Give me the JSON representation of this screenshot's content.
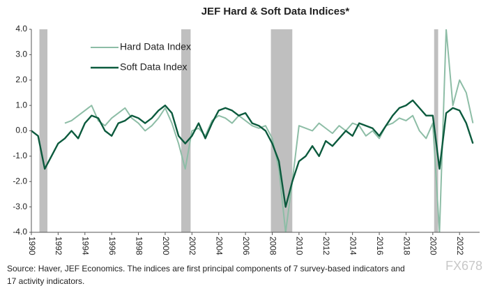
{
  "chart_data": {
    "type": "line",
    "title": "JEF Hard & Soft Data Indices*",
    "source": [
      "Source: Haver, JEF Economics. The indices are first principal components of 7 survey-based indicators and",
      "17 activity indicators."
    ],
    "watermark": "FX678",
    "x": [
      1990,
      1990.5,
      1991,
      1991.5,
      1992,
      1992.5,
      1993,
      1993.5,
      1994,
      1994.5,
      1995,
      1995.5,
      1996,
      1996.5,
      1997,
      1997.5,
      1998,
      1998.5,
      1999,
      1999.5,
      2000,
      2000.5,
      2001,
      2001.5,
      2002,
      2002.5,
      2003,
      2003.5,
      2004,
      2004.5,
      2005,
      2005.5,
      2006,
      2006.5,
      2007,
      2007.5,
      2008,
      2008.5,
      2009,
      2009.5,
      2010,
      2010.5,
      2011,
      2011.5,
      2012,
      2012.5,
      2013,
      2013.5,
      2014,
      2014.5,
      2015,
      2015.5,
      2016,
      2016.5,
      2017,
      2017.5,
      2018,
      2018.5,
      2019,
      2019.5,
      2020,
      2020.5,
      2021,
      2021.5,
      2022,
      2022.5,
      2023
    ],
    "series": [
      {
        "name": "Hard Data Index",
        "color": "#8dbda6",
        "values": [
          null,
          null,
          null,
          null,
          null,
          0.3,
          0.4,
          0.6,
          0.8,
          1.0,
          0.4,
          0.2,
          0.5,
          0.7,
          0.9,
          0.5,
          0.3,
          0.0,
          0.2,
          0.5,
          0.9,
          0.3,
          -0.5,
          -1.5,
          0.0,
          0.1,
          -0.2,
          0.4,
          0.6,
          0.5,
          0.3,
          0.6,
          0.4,
          0.2,
          0.1,
          0.2,
          -0.3,
          -1.5,
          -4.0,
          -2.0,
          0.2,
          0.1,
          0.0,
          0.3,
          0.1,
          -0.1,
          0.2,
          0.0,
          0.3,
          0.2,
          -0.2,
          0.0,
          -0.3,
          0.2,
          0.3,
          0.5,
          0.4,
          0.6,
          0.0,
          -0.3,
          0.3,
          -4.0,
          4.0,
          1.0,
          2.0,
          1.5,
          0.3
        ]
      },
      {
        "name": "Soft Data Index",
        "color": "#0b5a3d",
        "values": [
          0.0,
          -0.2,
          -1.5,
          -1.0,
          -0.5,
          -0.3,
          0.0,
          -0.3,
          0.3,
          0.6,
          0.5,
          0.0,
          -0.2,
          0.3,
          0.4,
          0.6,
          0.5,
          0.3,
          0.5,
          0.8,
          1.0,
          0.7,
          -0.2,
          -0.5,
          -0.2,
          0.3,
          -0.3,
          0.3,
          0.8,
          0.9,
          0.8,
          0.6,
          0.7,
          0.3,
          0.2,
          0.0,
          -0.5,
          -1.2,
          -3.0,
          -2.0,
          -1.2,
          -1.0,
          -0.6,
          -1.0,
          -0.4,
          -0.6,
          -0.3,
          0.0,
          -0.2,
          0.3,
          0.2,
          0.1,
          -0.2,
          0.2,
          0.6,
          0.9,
          1.0,
          1.2,
          0.9,
          0.6,
          0.6,
          -1.5,
          0.7,
          0.9,
          0.8,
          0.3,
          -0.5
        ]
      }
    ],
    "recessions": [
      [
        1990.6,
        1991.2
      ],
      [
        2001.2,
        2001.9
      ],
      [
        2007.9,
        2009.5
      ],
      [
        2020.1,
        2020.4
      ]
    ],
    "recession_color": "#bfbfbf",
    "xlim": [
      1990,
      2023.5
    ],
    "xticks": [
      1990,
      1992,
      1994,
      1996,
      1998,
      2000,
      2002,
      2004,
      2006,
      2008,
      2010,
      2012,
      2014,
      2016,
      2018,
      2020,
      2022
    ],
    "ylim": [
      -4,
      4
    ],
    "yticks": [
      {
        "value": 4,
        "label": "4.0"
      },
      {
        "value": 3,
        "label": "3.0"
      },
      {
        "value": 2,
        "label": "2.0"
      },
      {
        "value": 1,
        "label": "1.0"
      },
      {
        "value": 0,
        "label": "0.0"
      },
      {
        "value": -1,
        "label": "-1.0"
      },
      {
        "value": -2,
        "label": "-2.0"
      },
      {
        "value": -3,
        "label": "-3.0"
      },
      {
        "value": -4,
        "label": "-4.0"
      }
    ],
    "legend": "top-left"
  }
}
